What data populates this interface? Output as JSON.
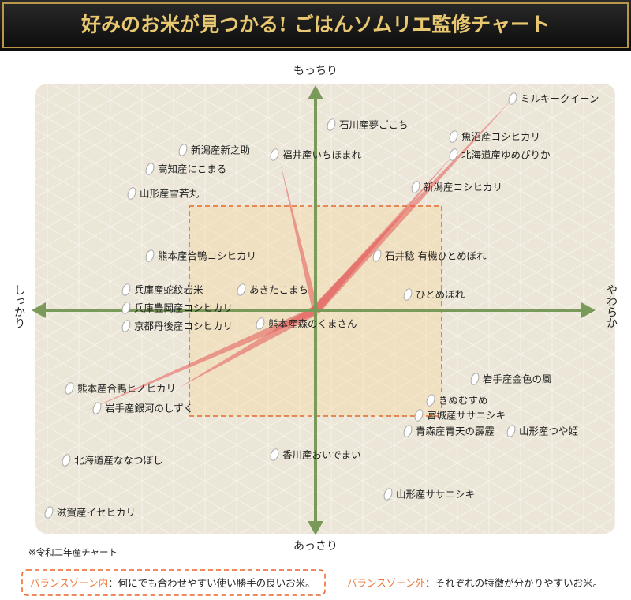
{
  "header": {
    "title": "好みのお米が見つかる! ごはんソムリエ監修チャート"
  },
  "axes": {
    "top": "もっちり",
    "bottom": "あっさり",
    "left": "しっかり",
    "right": "やわらか"
  },
  "nodes": [
    {
      "label": "ミルキークイーン"
    },
    {
      "label": "石川産夢ごこち"
    },
    {
      "label": "魚沼産コシヒカリ"
    },
    {
      "label": "北海道産ゆめぴりか"
    },
    {
      "label": "新潟産新之助"
    },
    {
      "label": "福井産いちほまれ"
    },
    {
      "label": "高知産にこまる"
    },
    {
      "label": "新潟産コシヒカリ"
    },
    {
      "label": "山形産雪若丸"
    },
    {
      "label": "熊本産合鴨コシヒカリ"
    },
    {
      "label": "石井稔 有機ひとめぼれ"
    },
    {
      "label": "兵庫産蛇紋岩米"
    },
    {
      "label": "あきたこまち"
    },
    {
      "label": "ひとめぼれ"
    },
    {
      "label": "兵庫豊岡産コシヒカリ"
    },
    {
      "label": "京都丹後産コシヒカリ"
    },
    {
      "label": "熊本産森のくまさん"
    },
    {
      "label": "岩手産金色の風"
    },
    {
      "label": "熊本産合鴨ヒノヒカリ"
    },
    {
      "label": "きぬむすめ"
    },
    {
      "label": "岩手産銀河のしずく"
    },
    {
      "label": "宮城産ササニシキ"
    },
    {
      "label": "青森産青天の霹靂"
    },
    {
      "label": "山形産つや姫"
    },
    {
      "label": "北海道産ななつぼし"
    },
    {
      "label": "香川産おいでまい"
    },
    {
      "label": "山形産ササニシキ"
    },
    {
      "label": "滋賀産イセヒカリ"
    }
  ],
  "note": "※令和二年産チャート",
  "legend": [
    {
      "term": "バランスゾーン内",
      "desc": "：何にでも合わせやすい使い勝手の良いお米。"
    },
    {
      "term": "バランスゾーン外",
      "desc": "：それぞれの特徴が分かりやすいお米。"
    }
  ]
}
